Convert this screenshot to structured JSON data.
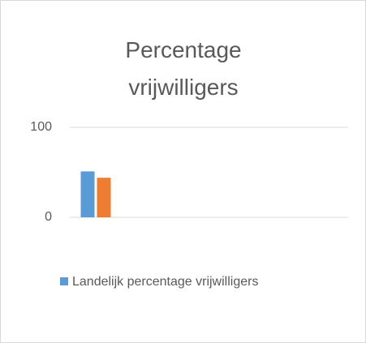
{
  "chart_data": {
    "type": "bar",
    "title": "Percentage vrijwilligers",
    "categories": [
      null
    ],
    "series": [
      {
        "name": "Landelijk percentage vrijwilligers",
        "color": "#5b9bd5",
        "values": [
          51
        ]
      },
      {
        "name": null,
        "color": "#ed7d31",
        "values": [
          44
        ]
      }
    ],
    "ylim": [
      0,
      100
    ],
    "yticks": [
      0,
      100
    ],
    "grid": true,
    "legend": "bottom"
  }
}
